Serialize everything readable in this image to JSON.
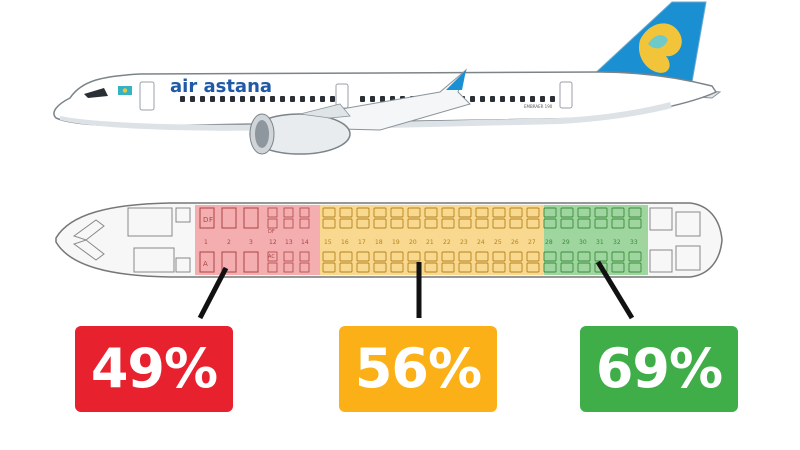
{
  "airline": {
    "name": "air astana",
    "model_label": "EMBRAER 190"
  },
  "seat_map": {
    "labels_left": [
      "D",
      "F",
      "A",
      "C",
      "1",
      "2",
      "3"
    ],
    "front_labels": [
      "12",
      "13",
      "14"
    ],
    "front_pairs": [
      "DF",
      "AC"
    ],
    "mid_rows": [
      "15",
      "16",
      "17",
      "18",
      "19",
      "20",
      "21",
      "22",
      "23",
      "24",
      "25",
      "26",
      "27"
    ],
    "rear_rows": [
      "28",
      "29",
      "30",
      "31",
      "32",
      "33"
    ]
  },
  "zones": [
    {
      "id": "front",
      "percent": "49%",
      "color": "#e8212e",
      "zone_color": "#f3a1a3"
    },
    {
      "id": "middle",
      "percent": "56%",
      "color": "#fbb017",
      "zone_color": "#f9d27c"
    },
    {
      "id": "rear",
      "percent": "69%",
      "color": "#3fae49",
      "zone_color": "#8fd08f"
    }
  ]
}
